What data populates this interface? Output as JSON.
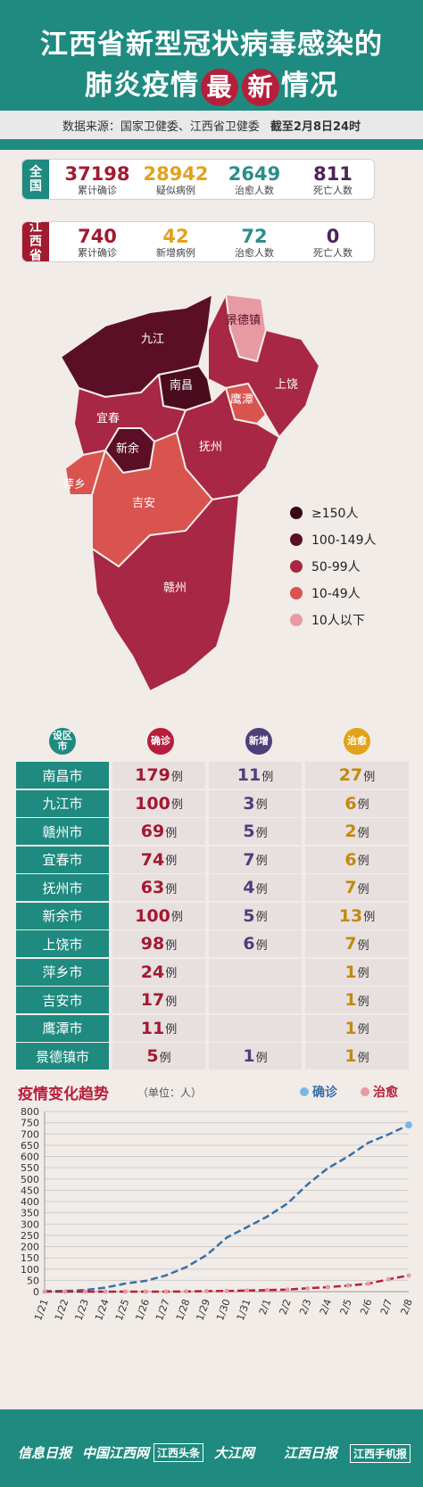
{
  "header": {
    "title_line1": "江西省新型冠状病毒感染的",
    "title_line2_pre": "肺炎疫情",
    "title_line2_hl1": "最",
    "title_line2_hl2": "新",
    "title_line2_post": "情况",
    "source": "数据来源：国家卫健委、江西省卫健委",
    "date": "截至2月8日24时"
  },
  "national": {
    "tag": "全国",
    "items": [
      {
        "value": "37198",
        "label": "累计确诊",
        "color": "#a21a30"
      },
      {
        "value": "28942",
        "label": "疑似病例",
        "color": "#e2a21a"
      },
      {
        "value": "2649",
        "label": "治愈人数",
        "color": "#2a8f8b"
      },
      {
        "value": "811",
        "label": "死亡人数",
        "color": "#4d2459"
      }
    ]
  },
  "province": {
    "tag": "江西省",
    "items": [
      {
        "value": "740",
        "label": "累计确诊",
        "color": "#a21a30"
      },
      {
        "value": "42",
        "label": "新增病例",
        "color": "#e2a21a"
      },
      {
        "value": "72",
        "label": "治愈人数",
        "color": "#2a8f8b"
      },
      {
        "value": "0",
        "label": "死亡人数",
        "color": "#4d2459"
      }
    ]
  },
  "map": {
    "regions": [
      {
        "name": "九江",
        "color": "#5b0f26"
      },
      {
        "name": "南昌",
        "color": "#4a0b1f"
      },
      {
        "name": "景德镇",
        "color": "#e79aa2"
      },
      {
        "name": "上饶",
        "color": "#a72744"
      },
      {
        "name": "鹰潭",
        "color": "#d9534f"
      },
      {
        "name": "宜春",
        "color": "#a72744"
      },
      {
        "name": "新余",
        "color": "#5b0f26"
      },
      {
        "name": "抚州",
        "color": "#a72744"
      },
      {
        "name": "萍乡",
        "color": "#d9534f"
      },
      {
        "name": "吉安",
        "color": "#d9534f"
      },
      {
        "name": "赣州",
        "color": "#a72744"
      }
    ]
  },
  "legend": [
    {
      "label": "≥150人",
      "color": "#3a0817"
    },
    {
      "label": "100-149人",
      "color": "#5b0f26"
    },
    {
      "label": "50-99人",
      "color": "#a72744"
    },
    {
      "label": "10-49人",
      "color": "#d9534f"
    },
    {
      "label": "10人以下",
      "color": "#e79aa2"
    }
  ],
  "table": {
    "headers": {
      "city": "设区市",
      "confirmed": "确诊",
      "new": "新增",
      "cured": "治愈"
    },
    "unit": "例",
    "rows": [
      {
        "city": "南昌市",
        "confirmed": "179",
        "new": "11",
        "cured": "27"
      },
      {
        "city": "九江市",
        "confirmed": "100",
        "new": "3",
        "cured": "6"
      },
      {
        "city": "赣州市",
        "confirmed": "69",
        "new": "5",
        "cured": "2"
      },
      {
        "city": "宜春市",
        "confirmed": "74",
        "new": "7",
        "cured": "6"
      },
      {
        "city": "抚州市",
        "confirmed": "63",
        "new": "4",
        "cured": "7"
      },
      {
        "city": "新余市",
        "confirmed": "100",
        "new": "5",
        "cured": "13"
      },
      {
        "city": "上饶市",
        "confirmed": "98",
        "new": "6",
        "cured": "7"
      },
      {
        "city": "萍乡市",
        "confirmed": "24",
        "new": "",
        "cured": "1"
      },
      {
        "city": "吉安市",
        "confirmed": "17",
        "new": "",
        "cured": "1"
      },
      {
        "city": "鹰潭市",
        "confirmed": "11",
        "new": "",
        "cured": "1"
      },
      {
        "city": "景德镇市",
        "confirmed": "5",
        "new": "1",
        "cured": "1"
      }
    ]
  },
  "trend": {
    "title": "疫情变化趋势",
    "unit": "（单位：人）"
  },
  "chart_data": {
    "type": "line",
    "x": [
      "1/21",
      "1/22",
      "1/23",
      "1/24",
      "1/25",
      "1/26",
      "1/27",
      "1/28",
      "1/29",
      "1/30",
      "1/31",
      "2/1",
      "2/2",
      "2/3",
      "2/4",
      "2/5",
      "2/6",
      "2/7",
      "2/8"
    ],
    "series": [
      {
        "name": "确诊",
        "color": "#3a6fa8",
        "values": [
          2,
          3,
          7,
          18,
          36,
          48,
          72,
          109,
          162,
          240,
          286,
          333,
          391,
          476,
          548,
          600,
          661,
          698,
          740
        ]
      },
      {
        "name": "治愈",
        "color": "#b71e3c",
        "values": [
          0,
          0,
          0,
          0,
          0,
          0,
          0,
          1,
          2,
          3,
          5,
          7,
          9,
          15,
          20,
          27,
          35,
          55,
          72
        ]
      }
    ],
    "ylim": [
      0,
      800
    ],
    "yticks": [
      0,
      50,
      100,
      150,
      200,
      250,
      300,
      350,
      400,
      450,
      500,
      550,
      600,
      650,
      700,
      750,
      800
    ],
    "grid": true,
    "legend_position": "top-right"
  },
  "footer": {
    "media": [
      "信息日报",
      "中国江西网",
      "江西头条",
      "大江网",
      "江西日报",
      "江西手机报"
    ]
  }
}
